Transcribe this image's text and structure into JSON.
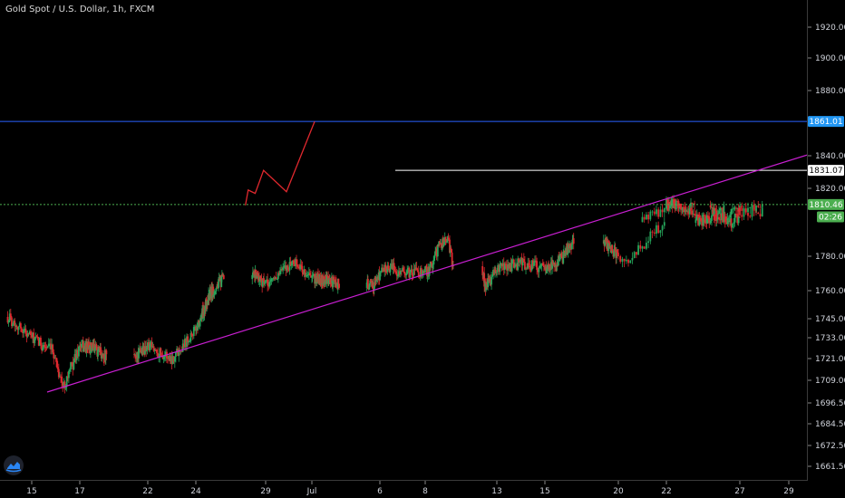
{
  "header": {
    "title": "Gold Spot / U.S. Dollar, 1h, FXCM"
  },
  "chart_data": {
    "type": "candlestick",
    "colors": {
      "up": "#26a65b",
      "down": "#e0282e",
      "background": "#000000"
    },
    "price_axis": {
      "ticks": [
        "1920.00",
        "1900.00",
        "1880.00",
        "1840.00",
        "1820.00",
        "1780.00",
        "1760.00",
        "1745.00",
        "1733.00",
        "1721.00",
        "1709.00",
        "1696.50",
        "1684.50",
        "1672.50",
        "1661.50"
      ],
      "tick_values": [
        1920,
        1900,
        1880,
        1840,
        1820,
        1780,
        1760,
        1745,
        1733,
        1721,
        1709,
        1696.5,
        1684.5,
        1672.5,
        1661.5
      ]
    },
    "time_axis": {
      "ticks": [
        "15",
        "17",
        "22",
        "24",
        "29",
        "Jul",
        "6",
        "8",
        "13",
        "15",
        "20",
        "22",
        "27",
        "29"
      ]
    },
    "price_tags": [
      {
        "label": "1861.01",
        "value": 1861.01,
        "bg": "#2196f3",
        "fg": "#ffffff"
      },
      {
        "label": "1831.07",
        "value": 1831.07,
        "bg": "#ffffff",
        "fg": "#000000"
      },
      {
        "label": "1810.46",
        "value": 1810.46,
        "bg": "#4caf50",
        "fg": "#ffffff"
      },
      {
        "label": "02:26",
        "value": 1803.2,
        "bg": "#4caf50",
        "fg": "#ffffff"
      }
    ],
    "horizontal_lines": [
      {
        "name": "resistance",
        "value": 1861.01,
        "color": "#2962ff",
        "style": "solid",
        "from": "left"
      },
      {
        "name": "target",
        "value": 1831.07,
        "color": "#ffffff",
        "style": "solid",
        "from": "Jul 6"
      },
      {
        "name": "current-price",
        "value": 1810.46,
        "color": "#4caf50",
        "style": "dotted",
        "from": "left"
      }
    ],
    "trendline": {
      "color": "#c81fd1",
      "from": {
        "date": "Jun 16",
        "price": 1702.5
      },
      "to": {
        "date": "Jul 30",
        "price": 1840.5
      }
    },
    "projection_path": {
      "color": "#e0282e",
      "points": [
        {
          "day": 13.55,
          "price": 1810
        },
        {
          "day": 13.75,
          "price": 1819
        },
        {
          "day": 14.25,
          "price": 1817
        },
        {
          "day": 14.85,
          "price": 1831
        },
        {
          "day": 15.9,
          "price": 1818
        },
        {
          "day": 17.2,
          "price": 1861
        }
      ]
    },
    "anchors": [
      {
        "t": 0.0,
        "p": 1746
      },
      {
        "t": 1.2,
        "p": 1731
      },
      {
        "t": 1.9,
        "p": 1725
      },
      {
        "t": 2.3,
        "p": 1705
      },
      {
        "t": 3.0,
        "p": 1728
      },
      {
        "t": 4.0,
        "p": 1727
      },
      {
        "t": 5.0,
        "p": 1722
      },
      {
        "t": 6.0,
        "p": 1728
      },
      {
        "t": 7.0,
        "p": 1721
      },
      {
        "t": 8.2,
        "p": 1742
      },
      {
        "t": 9.0,
        "p": 1758
      },
      {
        "t": 10.3,
        "p": 1770
      },
      {
        "t": 11.0,
        "p": 1763
      },
      {
        "t": 12.2,
        "p": 1777
      },
      {
        "t": 13.0,
        "p": 1767
      },
      {
        "t": 14.0,
        "p": 1766
      },
      {
        "t": 15.5,
        "p": 1763
      },
      {
        "t": 16.3,
        "p": 1774
      },
      {
        "t": 17.2,
        "p": 1770
      },
      {
        "t": 18.3,
        "p": 1772
      },
      {
        "t": 19.0,
        "p": 1787
      },
      {
        "t": 19.6,
        "p": 1790
      },
      {
        "t": 20.2,
        "p": 1762
      },
      {
        "t": 21.0,
        "p": 1772
      },
      {
        "t": 22.0,
        "p": 1776
      },
      {
        "t": 23.0,
        "p": 1773
      },
      {
        "t": 24.2,
        "p": 1779
      },
      {
        "t": 25.0,
        "p": 1789
      },
      {
        "t": 26.2,
        "p": 1778
      },
      {
        "t": 27.0,
        "p": 1801
      },
      {
        "t": 27.8,
        "p": 1812
      },
      {
        "t": 28.3,
        "p": 1810
      },
      {
        "t": 29.0,
        "p": 1808
      },
      {
        "t": 29.8,
        "p": 1802
      },
      {
        "t": 30.4,
        "p": 1801
      },
      {
        "t": 31.0,
        "p": 1807
      },
      {
        "t": 31.6,
        "p": 1799
      },
      {
        "t": 32.4,
        "p": 1808
      },
      {
        "t": 33.0,
        "p": 1805
      },
      {
        "t": 33.5,
        "p": 1811
      }
    ]
  }
}
